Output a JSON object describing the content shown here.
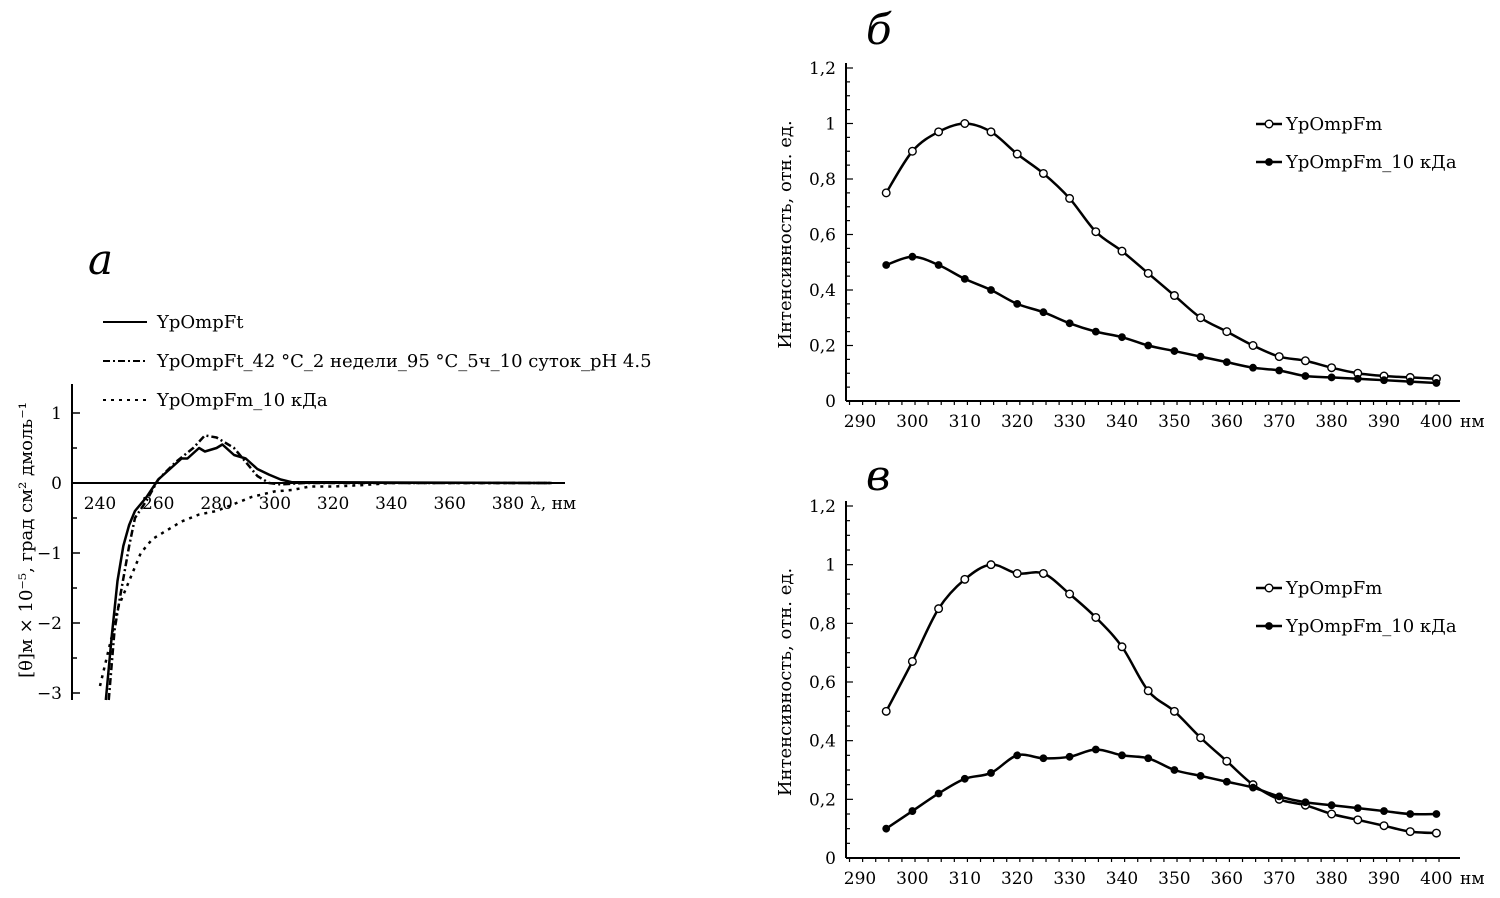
{
  "chart_data": [
    {
      "panel": "а",
      "type": "line",
      "xlabel": "λ, нм",
      "ylabel": "[θ]м × 10⁻⁵, град см² дмоль⁻¹",
      "xlim": [
        230,
        399
      ],
      "ylim": [
        -3.1,
        1.4
      ],
      "xticks": [
        240,
        260,
        280,
        300,
        320,
        340,
        360,
        380
      ],
      "yticks": [
        1,
        0,
        -1,
        -2,
        -3
      ],
      "ytick_labels": [
        "1",
        "0",
        "−1",
        "−2",
        "−3"
      ],
      "grid": false,
      "legend_position": "top",
      "series": [
        {
          "name": "YpOmpFt",
          "style": "solid",
          "x": [
            242,
            244,
            246,
            248,
            250,
            252,
            256,
            260,
            264,
            268,
            270,
            274,
            276,
            280,
            282,
            286,
            290,
            294,
            298,
            302,
            306,
            320,
            395
          ],
          "y": [
            -3.1,
            -2.2,
            -1.4,
            -0.9,
            -0.6,
            -0.4,
            -0.2,
            0.05,
            0.2,
            0.35,
            0.35,
            0.5,
            0.45,
            0.5,
            0.55,
            0.4,
            0.35,
            0.2,
            0.12,
            0.05,
            0.01,
            0.01,
            0
          ]
        },
        {
          "name": "YpOmpFt_42 °C_2 недели_95 °C_5ч_10 суток_pH 4.5",
          "style": "dashdot",
          "x": [
            243,
            245,
            247,
            250,
            252,
            256,
            260,
            266,
            272,
            276,
            280,
            286,
            290,
            294,
            298,
            302,
            310,
            395
          ],
          "y": [
            -3.1,
            -2.1,
            -1.6,
            -0.9,
            -0.5,
            -0.25,
            0.05,
            0.3,
            0.5,
            0.68,
            0.65,
            0.5,
            0.3,
            0.1,
            0,
            -0.02,
            0,
            0
          ]
        },
        {
          "name": "YpOmpFm_10 кДа",
          "style": "dotted",
          "x": [
            240,
            244,
            246,
            250,
            254,
            258,
            262,
            268,
            274,
            280,
            286,
            292,
            300,
            306,
            312,
            320,
            330,
            340,
            395
          ],
          "y": [
            -2.9,
            -2.2,
            -1.8,
            -1.4,
            -1.0,
            -0.8,
            -0.7,
            -0.55,
            -0.45,
            -0.4,
            -0.3,
            -0.2,
            -0.12,
            -0.1,
            -0.05,
            -0.05,
            -0.03,
            0,
            0
          ]
        }
      ]
    },
    {
      "panel": "б",
      "type": "line",
      "xlabel": "нм",
      "ylabel": "Интенсивность, отн. ед.",
      "xlim": [
        288,
        402
      ],
      "ylim": [
        0,
        1.2
      ],
      "xticks": [
        290,
        300,
        310,
        320,
        330,
        340,
        350,
        360,
        370,
        380,
        390,
        400
      ],
      "yticks": [
        0,
        0.2,
        0.4,
        0.6,
        0.8,
        1,
        1.2
      ],
      "ytick_labels": [
        "0",
        "0,2",
        "0,4",
        "0,6",
        "0,8",
        "1",
        "1,2"
      ],
      "grid": false,
      "legend_position": "top-right",
      "x": [
        295,
        300,
        305,
        310,
        315,
        320,
        325,
        330,
        335,
        340,
        345,
        350,
        355,
        360,
        365,
        370,
        375,
        380,
        385,
        390,
        395,
        400
      ],
      "series": [
        {
          "name": "YpOmpFm",
          "marker": "open-circle",
          "values": [
            0.75,
            0.9,
            0.97,
            1.0,
            0.97,
            0.89,
            0.82,
            0.73,
            0.61,
            0.54,
            0.46,
            0.38,
            0.3,
            0.25,
            0.2,
            0.16,
            0.145,
            0.12,
            0.1,
            0.09,
            0.085,
            0.08
          ]
        },
        {
          "name": "YpOmpFm_10 кДа",
          "marker": "filled-circle",
          "values": [
            0.49,
            0.52,
            0.49,
            0.44,
            0.4,
            0.35,
            0.32,
            0.28,
            0.25,
            0.23,
            0.2,
            0.18,
            0.16,
            0.14,
            0.12,
            0.11,
            0.09,
            0.085,
            0.08,
            0.075,
            0.07,
            0.065
          ]
        }
      ]
    },
    {
      "panel": "в",
      "type": "line",
      "xlabel": "нм",
      "ylabel": "Интенсивность, отн. ед.",
      "xlim": [
        288,
        402
      ],
      "ylim": [
        0,
        1.2
      ],
      "xticks": [
        290,
        300,
        310,
        320,
        330,
        340,
        350,
        360,
        370,
        380,
        390,
        400
      ],
      "yticks": [
        0,
        0.2,
        0.4,
        0.6,
        0.8,
        1,
        1.2
      ],
      "ytick_labels": [
        "0",
        "0,2",
        "0,4",
        "0,6",
        "0,8",
        "1",
        "1,2"
      ],
      "grid": false,
      "legend_position": "top-right",
      "x": [
        295,
        300,
        305,
        310,
        315,
        320,
        325,
        330,
        335,
        340,
        345,
        350,
        355,
        360,
        365,
        370,
        375,
        380,
        385,
        390,
        395,
        400
      ],
      "series": [
        {
          "name": "YpOmpFm",
          "marker": "open-circle",
          "values": [
            0.5,
            0.67,
            0.85,
            0.95,
            1.0,
            0.97,
            0.97,
            0.9,
            0.82,
            0.72,
            0.57,
            0.5,
            0.41,
            0.33,
            0.25,
            0.2,
            0.18,
            0.15,
            0.13,
            0.11,
            0.09,
            0.085
          ]
        },
        {
          "name": "YpOmpFm_10 кДа",
          "marker": "filled-circle",
          "values": [
            0.1,
            0.16,
            0.22,
            0.27,
            0.29,
            0.35,
            0.34,
            0.345,
            0.37,
            0.35,
            0.34,
            0.3,
            0.28,
            0.26,
            0.24,
            0.21,
            0.19,
            0.18,
            0.17,
            0.16,
            0.15,
            0.15
          ]
        }
      ]
    }
  ]
}
